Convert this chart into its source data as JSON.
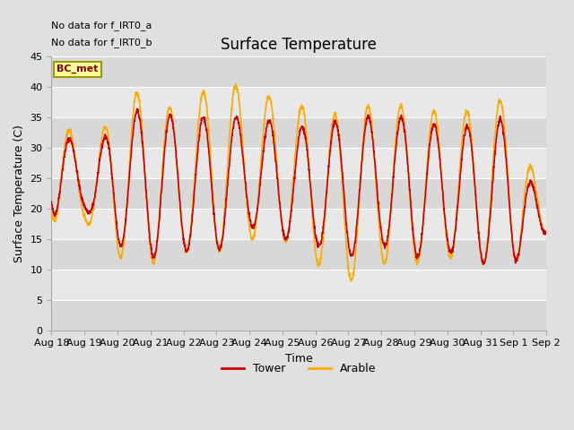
{
  "title": "Surface Temperature",
  "xlabel": "Time",
  "ylabel": "Surface Temperature (C)",
  "annotation_lines": [
    "No data for f_IRT0_a",
    "No data for f_IRT0_b"
  ],
  "legend_label_top": "BC_met",
  "legend_entries": [
    "Tower",
    "Arable"
  ],
  "legend_colors": [
    "#cc0000",
    "#ffaa00"
  ],
  "ylim": [
    0,
    45
  ],
  "yticks": [
    0,
    5,
    10,
    15,
    20,
    25,
    30,
    35,
    40,
    45
  ],
  "band_colors": [
    "#e8e8e8",
    "#d8d8d8"
  ],
  "background_color": "#e0e0e0",
  "grid_color": "#ffffff",
  "tower_color": "#cc0000",
  "arable_color": "#ffaa00",
  "x_labels": [
    "Aug 18",
    "Aug 19",
    "Aug 20",
    "Aug 21",
    "Aug 22",
    "Aug 23",
    "Aug 24",
    "Aug 25",
    "Aug 26",
    "Aug 27",
    "Aug 28",
    "Aug 29",
    "Aug 30",
    "Aug 31",
    "Sep 1",
    "Sep 2"
  ],
  "title_fontsize": 12,
  "axis_fontsize": 9,
  "tick_fontsize": 8,
  "figwidth": 6.4,
  "figheight": 4.8,
  "dpi": 100
}
